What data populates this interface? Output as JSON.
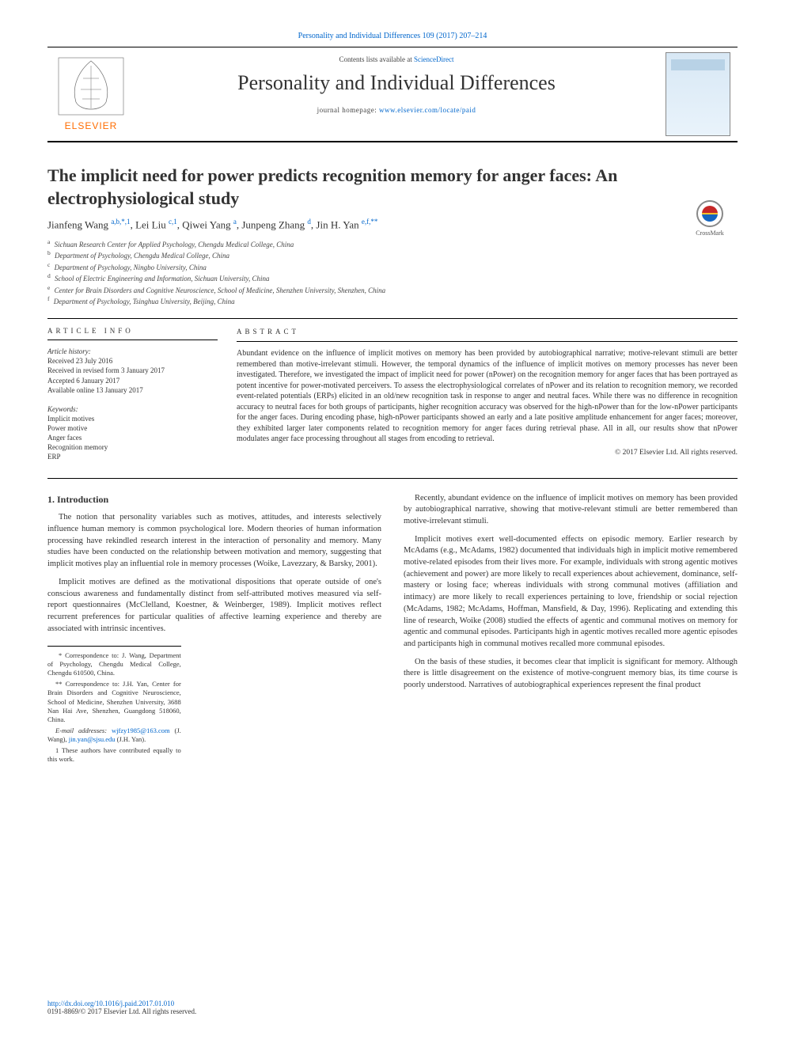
{
  "colors": {
    "link": "#0066cc",
    "text": "#333333",
    "muted": "#444444",
    "rule": "#000000",
    "background": "#ffffff",
    "elsevier_orange": "#ff6c00",
    "elsevier_grey": "#6b6b6b"
  },
  "typography": {
    "base_family": "Georgia, 'Times New Roman', serif",
    "title_fontsize_pt": 22,
    "journal_fontsize_pt": 26,
    "body_fontsize_pt": 10.5,
    "abstract_fontsize_pt": 10,
    "meta_fontsize_pt": 9,
    "footnote_fontsize_pt": 8.5
  },
  "header": {
    "citation": "Personality and Individual Differences 109 (2017) 207–214",
    "contents_prefix": "Contents lists available at ",
    "contents_link": "ScienceDirect",
    "journal_name": "Personality and Individual Differences",
    "homepage_prefix": "journal homepage: ",
    "homepage_link": "www.elsevier.com/locate/paid",
    "publisher_logo_label": "ELSEVIER"
  },
  "crossmark_label": "CrossMark",
  "title": "The implicit need for power predicts recognition memory for anger faces: An electrophysiological study",
  "authors_html": "Jianfeng Wang <sup>a,b,*,1</sup>, Lei Liu <sup>c,1</sup>, Qiwei Yang <sup>a</sup>, Junpeng Zhang <sup>d</sup>, Jin H. Yan <sup>e,f,**</sup>",
  "affiliations": [
    {
      "key": "a",
      "text": "Sichuan Research Center for Applied Psychology, Chengdu Medical College, China"
    },
    {
      "key": "b",
      "text": "Department of Psychology, Chengdu Medical College, China"
    },
    {
      "key": "c",
      "text": "Department of Psychology, Ningbo University, China"
    },
    {
      "key": "d",
      "text": "School of Electric Engineering and Information, Sichuan University, China"
    },
    {
      "key": "e",
      "text": "Center for Brain Disorders and Cognitive Neuroscience, School of Medicine, Shenzhen University, Shenzhen, China"
    },
    {
      "key": "f",
      "text": "Department of Psychology, Tsinghua University, Beijing, China"
    }
  ],
  "section_labels": {
    "article_info": "ARTICLE INFO",
    "abstract": "ABSTRACT"
  },
  "article_history": {
    "heading": "Article history:",
    "lines": [
      "Received 23 July 2016",
      "Received in revised form 3 January 2017",
      "Accepted 6 January 2017",
      "Available online 13 January 2017"
    ]
  },
  "keywords": {
    "heading": "Keywords:",
    "items": [
      "Implicit motives",
      "Power motive",
      "Anger faces",
      "Recognition memory",
      "ERP"
    ]
  },
  "abstract": "Abundant evidence on the influence of implicit motives on memory has been provided by autobiographical narrative; motive-relevant stimuli are better remembered than motive-irrelevant stimuli. However, the temporal dynamics of the influence of implicit motives on memory processes has never been investigated. Therefore, we investigated the impact of implicit need for power (nPower) on the recognition memory for anger faces that has been portrayed as potent incentive for power-motivated perceivers. To assess the electrophysiological correlates of nPower and its relation to recognition memory, we recorded event-related potentials (ERPs) elicited in an old/new recognition task in response to anger and neutral faces. While there was no difference in recognition accuracy to neutral faces for both groups of participants, higher recognition accuracy was observed for the high-nPower than for the low-nPower participants for the anger faces. During encoding phase, high-nPower participants showed an early and a late positive amplitude enhancement for anger faces; moreover, they exhibited larger later components related to recognition memory for anger faces during retrieval phase. All in all, our results show that nPower modulates anger face processing throughout all stages from encoding to retrieval.",
  "copyright": "© 2017 Elsevier Ltd. All rights reserved.",
  "intro_heading": "1. Introduction",
  "body_left": [
    "The notion that personality variables such as motives, attitudes, and interests selectively influence human memory is common psychological lore. Modern theories of human information processing have rekindled research interest in the interaction of personality and memory. Many studies have been conducted on the relationship between motivation and memory, suggesting that implicit motives play an influential role in memory processes (Woike, Lavezzary, & Barsky, 2001).",
    "Implicit motives are defined as the motivational dispositions that operate outside of one's conscious awareness and fundamentally distinct from self-attributed motives measured via self-report questionnaires (McClelland, Koestner, & Weinberger, 1989). Implicit motives reflect recurrent preferences for particular qualities of affective learning experience and thereby are associated with intrinsic incentives."
  ],
  "body_right": [
    "Recently, abundant evidence on the influence of implicit motives on memory has been provided by autobiographical narrative, showing that motive-relevant stimuli are better remembered than motive-irrelevant stimuli.",
    "Implicit motives exert well-documented effects on episodic memory. Earlier research by McAdams (e.g., McAdams, 1982) documented that individuals high in implicit motive remembered motive-related episodes from their lives more. For example, individuals with strong agentic motives (achievement and power) are more likely to recall experiences about achievement, dominance, self-mastery or losing face; whereas individuals with strong communal motives (affiliation and intimacy) are more likely to recall experiences pertaining to love, friendship or social rejection (McAdams, 1982; McAdams, Hoffman, Mansfield, & Day, 1996). Replicating and extending this line of research, Woike (2008) studied the effects of agentic and communal motives on memory for agentic and communal episodes. Participants high in agentic motives recalled more agentic episodes and participants high in communal motives recalled more communal episodes.",
    "On the basis of these studies, it becomes clear that implicit is significant for memory. Although there is little disagreement on the existence of motive-congruent memory bias, its time course is poorly understood. Narratives of autobiographical experiences represent the final product"
  ],
  "footnotes": {
    "corr1": "* Correspondence to: J. Wang, Department of Psychology, Chengdu Medical College, Chengdu 610500, China.",
    "corr2": "** Correspondence to: J.H. Yan, Center for Brain Disorders and Cognitive Neuroscience, School of Medicine, Shenzhen University, 3688 Nan Hai Ave, Shenzhen, Guangdong 518060, China.",
    "emails_label": "E-mail addresses: ",
    "email1": "wjfzy1985@163.com",
    "email1_who": " (J. Wang), ",
    "email2": "jin.yan@sjsu.edu",
    "email2_who": " (J.H. Yan).",
    "equal": "1 These authors have contributed equally to this work."
  },
  "footer": {
    "doi": "http://dx.doi.org/10.1016/j.paid.2017.01.010",
    "issn_line": "0191-8869/© 2017 Elsevier Ltd. All rights reserved."
  }
}
